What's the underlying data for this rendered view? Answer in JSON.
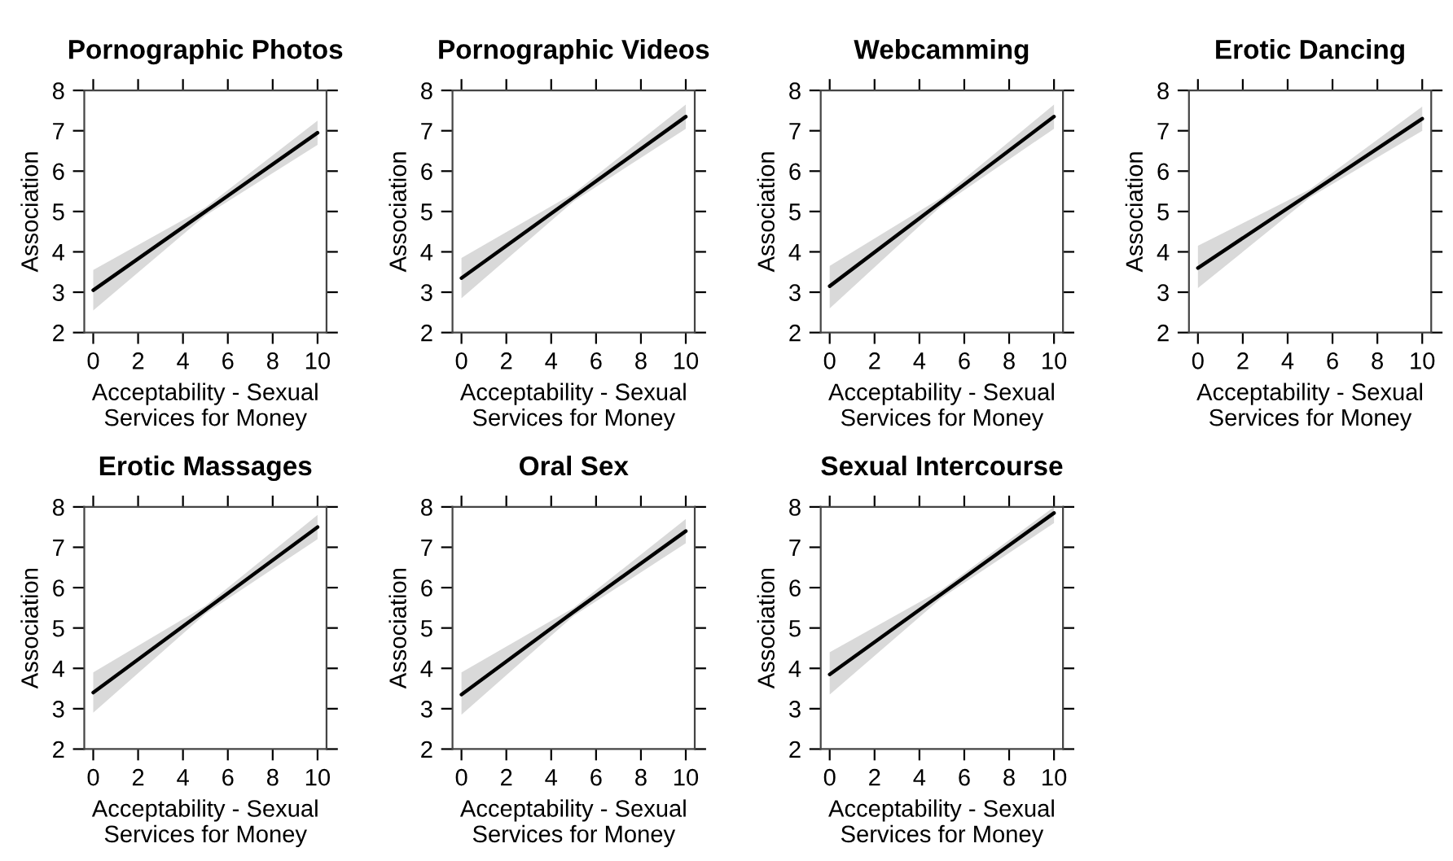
{
  "chart_data": [
    {
      "type": "line",
      "title": "Pornographic Photos",
      "xlabel": "Acceptability - Sexual\nServices for Money",
      "ylabel": "Association",
      "xlim": [
        -0.4,
        10.4
      ],
      "ylim": [
        2,
        8
      ],
      "xticks": [
        0,
        2,
        4,
        6,
        8,
        10
      ],
      "yticks": [
        2,
        3,
        4,
        5,
        6,
        7,
        8
      ],
      "grid": false,
      "x": [
        0,
        5,
        10
      ],
      "series": [
        {
          "color": "#000000",
          "values": [
            3.05,
            5.0,
            6.95
          ],
          "lower": [
            2.55,
            4.9,
            6.65
          ],
          "upper": [
            3.55,
            5.1,
            7.25
          ]
        }
      ]
    },
    {
      "type": "line",
      "title": "Pornographic Videos",
      "xlabel": "Acceptability - Sexual\nServices for Money",
      "ylabel": "Association",
      "xlim": [
        -0.4,
        10.4
      ],
      "ylim": [
        2,
        8
      ],
      "xticks": [
        0,
        2,
        4,
        6,
        8,
        10
      ],
      "yticks": [
        2,
        3,
        4,
        5,
        6,
        7,
        8
      ],
      "grid": false,
      "x": [
        0,
        5,
        10
      ],
      "series": [
        {
          "color": "#000000",
          "values": [
            3.35,
            5.35,
            7.35
          ],
          "lower": [
            2.85,
            5.25,
            7.05
          ],
          "upper": [
            3.85,
            5.45,
            7.65
          ]
        }
      ]
    },
    {
      "type": "line",
      "title": "Webcamming",
      "xlabel": "Acceptability - Sexual\nServices for Money",
      "ylabel": "Association",
      "xlim": [
        -0.4,
        10.4
      ],
      "ylim": [
        2,
        8
      ],
      "xticks": [
        0,
        2,
        4,
        6,
        8,
        10
      ],
      "yticks": [
        2,
        3,
        4,
        5,
        6,
        7,
        8
      ],
      "grid": false,
      "x": [
        0,
        5,
        10
      ],
      "series": [
        {
          "color": "#000000",
          "values": [
            3.15,
            5.25,
            7.35
          ],
          "lower": [
            2.6,
            5.15,
            7.05
          ],
          "upper": [
            3.65,
            5.35,
            7.65
          ]
        }
      ]
    },
    {
      "type": "line",
      "title": "Erotic Dancing",
      "xlabel": "Acceptability - Sexual\nServices for Money",
      "ylabel": "Association",
      "xlim": [
        -0.4,
        10.4
      ],
      "ylim": [
        2,
        8
      ],
      "xticks": [
        0,
        2,
        4,
        6,
        8,
        10
      ],
      "yticks": [
        2,
        3,
        4,
        5,
        6,
        7,
        8
      ],
      "grid": false,
      "x": [
        0,
        5,
        10
      ],
      "series": [
        {
          "color": "#000000",
          "values": [
            3.6,
            5.45,
            7.3
          ],
          "lower": [
            3.1,
            5.35,
            7.0
          ],
          "upper": [
            4.15,
            5.55,
            7.6
          ]
        }
      ]
    },
    {
      "type": "line",
      "title": "Erotic Massages",
      "xlabel": "Acceptability - Sexual\nServices for Money",
      "ylabel": "Association",
      "xlim": [
        -0.4,
        10.4
      ],
      "ylim": [
        2,
        8
      ],
      "xticks": [
        0,
        2,
        4,
        6,
        8,
        10
      ],
      "yticks": [
        2,
        3,
        4,
        5,
        6,
        7,
        8
      ],
      "grid": false,
      "x": [
        0,
        5,
        10
      ],
      "series": [
        {
          "color": "#000000",
          "values": [
            3.4,
            5.45,
            7.5
          ],
          "lower": [
            2.9,
            5.35,
            7.2
          ],
          "upper": [
            3.9,
            5.55,
            7.8
          ]
        }
      ]
    },
    {
      "type": "line",
      "title": "Oral Sex",
      "xlabel": "Acceptability - Sexual\nServices for Money",
      "ylabel": "Association",
      "xlim": [
        -0.4,
        10.4
      ],
      "ylim": [
        2,
        8
      ],
      "xticks": [
        0,
        2,
        4,
        6,
        8,
        10
      ],
      "yticks": [
        2,
        3,
        4,
        5,
        6,
        7,
        8
      ],
      "grid": false,
      "x": [
        0,
        5,
        10
      ],
      "series": [
        {
          "color": "#000000",
          "values": [
            3.35,
            5.4,
            7.4
          ],
          "lower": [
            2.85,
            5.3,
            7.1
          ],
          "upper": [
            3.9,
            5.5,
            7.7
          ]
        }
      ]
    },
    {
      "type": "line",
      "title": "Sexual Intercourse",
      "xlabel": "Acceptability - Sexual\nServices for Money",
      "ylabel": "Association",
      "xlim": [
        -0.4,
        10.4
      ],
      "ylim": [
        2,
        8
      ],
      "xticks": [
        0,
        2,
        4,
        6,
        8,
        10
      ],
      "yticks": [
        2,
        3,
        4,
        5,
        6,
        7,
        8
      ],
      "grid": false,
      "x": [
        0,
        5,
        10
      ],
      "series": [
        {
          "color": "#000000",
          "values": [
            3.85,
            5.85,
            7.85
          ],
          "lower": [
            3.35,
            5.75,
            7.6
          ],
          "upper": [
            4.4,
            5.95,
            8.0
          ]
        }
      ]
    }
  ]
}
